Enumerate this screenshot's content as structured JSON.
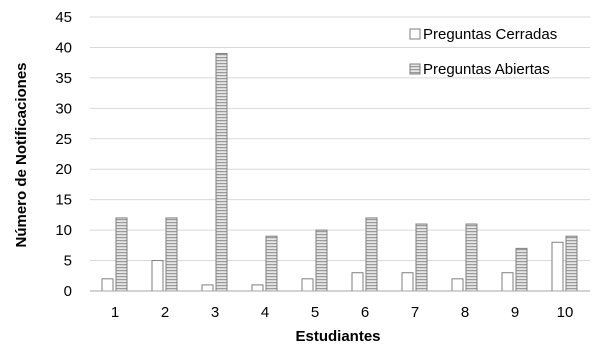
{
  "chart_data": {
    "type": "bar",
    "title": "",
    "xlabel": "Estudiantes",
    "ylabel": "Número de Notificaciones",
    "categories": [
      "1",
      "2",
      "3",
      "4",
      "5",
      "6",
      "7",
      "8",
      "9",
      "10"
    ],
    "ylim": [
      0,
      45
    ],
    "yticks": [
      "0",
      "5",
      "10",
      "15",
      "20",
      "25",
      "30",
      "35",
      "40",
      "45"
    ],
    "grid": true,
    "legend_position": "top-right",
    "series": [
      {
        "name": "Preguntas Cerradas",
        "values": [
          2,
          5,
          1,
          1,
          2,
          3,
          3,
          2,
          3,
          8
        ],
        "fill": "#ffffff",
        "pattern": "none"
      },
      {
        "name": "Preguntas Abiertas",
        "values": [
          12,
          12,
          39,
          9,
          10,
          12,
          11,
          11,
          7,
          9
        ],
        "fill": "#d0d0d0",
        "pattern": "horizontal-stripes"
      }
    ],
    "colors": {
      "grid": "#d9d9d9",
      "bar_stroke": "#7f7f7f",
      "axis": "#a6a6a6"
    }
  }
}
